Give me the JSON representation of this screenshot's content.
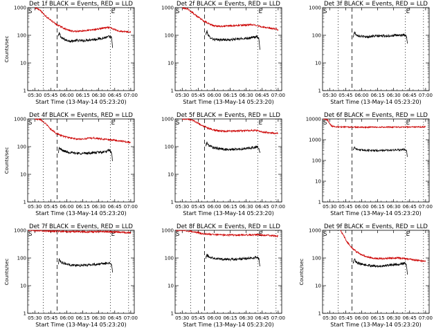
{
  "chart_data": [
    {
      "type": "line",
      "title": "Det 1f BLACK = Events, RED = LLD",
      "xlabel": "Start Time (13-May-14 05:23:20)",
      "ylabel": "Counts/sec",
      "y_scale": "log",
      "ylim": [
        1,
        1000
      ],
      "yticks": [
        "1",
        "10",
        "100",
        "1000"
      ],
      "xticks": [
        "05:30",
        "05:45",
        "06:00",
        "06:15",
        "06:30",
        "06:45",
        "07:00"
      ],
      "markers": {
        "start": "S",
        "end": "E"
      },
      "colors": {
        "events": "#000000",
        "lld": "#cc0000"
      },
      "series": [
        {
          "name": "BLACK = Events",
          "x": [
            "05:52",
            "05:53",
            "05:55",
            "06:00",
            "06:05",
            "06:10",
            "06:15",
            "06:20",
            "06:25",
            "06:30",
            "06:35",
            "06:38",
            "06:40",
            "06:42",
            "06:43"
          ],
          "values": [
            90,
            120,
            80,
            65,
            62,
            65,
            63,
            68,
            70,
            75,
            80,
            85,
            90,
            80,
            35
          ]
        },
        {
          "name": "RED = LLD",
          "x": [
            "05:30",
            "05:35",
            "05:40",
            "05:45",
            "05:50",
            "05:55",
            "06:00",
            "06:05",
            "06:10",
            "06:15",
            "06:20",
            "06:25",
            "06:30",
            "06:35",
            "06:40",
            "06:45",
            "06:50",
            "06:55",
            "07:00"
          ],
          "values": [
            1000,
            800,
            500,
            350,
            250,
            200,
            160,
            140,
            140,
            145,
            150,
            160,
            170,
            185,
            190,
            160,
            140,
            135,
            130
          ]
        }
      ]
    },
    {
      "type": "line",
      "title": "Det 2f BLACK = Events, RED = LLD",
      "xlabel": "Start Time (13-May-14 05:23:20)",
      "ylabel": "",
      "y_scale": "log",
      "ylim": [
        1,
        1000
      ],
      "yticks": [
        "1",
        "10",
        "100",
        "1000"
      ],
      "xticks": [
        "05:30",
        "05:45",
        "06:00",
        "06:15",
        "06:30",
        "06:45",
        "07:00"
      ],
      "markers": {
        "start": "S",
        "end": "E"
      },
      "colors": {
        "events": "#000000",
        "lld": "#cc0000"
      },
      "series": [
        {
          "name": "BLACK = Events",
          "x": [
            "05:52",
            "05:53",
            "05:55",
            "06:00",
            "06:05",
            "06:10",
            "06:15",
            "06:20",
            "06:25",
            "06:30",
            "06:35",
            "06:38",
            "06:40",
            "06:42",
            "06:43"
          ],
          "values": [
            100,
            140,
            90,
            70,
            68,
            70,
            68,
            72,
            75,
            78,
            82,
            86,
            88,
            75,
            30
          ]
        },
        {
          "name": "RED = LLD",
          "x": [
            "05:30",
            "05:35",
            "05:40",
            "05:45",
            "05:50",
            "05:55",
            "06:00",
            "06:05",
            "06:10",
            "06:15",
            "06:20",
            "06:25",
            "06:30",
            "06:35",
            "06:40",
            "06:45",
            "06:50",
            "06:55",
            "07:00"
          ],
          "values": [
            1000,
            900,
            650,
            450,
            330,
            260,
            220,
            210,
            215,
            220,
            225,
            230,
            235,
            240,
            230,
            200,
            185,
            175,
            160
          ]
        }
      ]
    },
    {
      "type": "line",
      "title": "Det 3f BLACK = Events, RED = LLD",
      "xlabel": "Start Time (13-May-14 05:23:20)",
      "ylabel": "",
      "y_scale": "log",
      "ylim": [
        1,
        1000
      ],
      "yticks": [
        "1",
        "10",
        "100",
        "1000"
      ],
      "xticks": [
        "05:30",
        "05:45",
        "06:00",
        "06:15",
        "06:30",
        "06:45",
        "07:00"
      ],
      "markers": {
        "start": "S",
        "end": "E"
      },
      "colors": {
        "events": "#000000",
        "lld": "#cc0000"
      },
      "series": [
        {
          "name": "BLACK = Events",
          "x": [
            "05:52",
            "05:53",
            "05:55",
            "06:00",
            "06:05",
            "06:10",
            "06:15",
            "06:20",
            "06:25",
            "06:30",
            "06:35",
            "06:38",
            "06:40",
            "06:42",
            "06:43"
          ],
          "values": [
            80,
            130,
            105,
            90,
            88,
            92,
            94,
            95,
            96,
            98,
            100,
            102,
            100,
            90,
            50
          ]
        },
        {
          "name": "RED = LLD",
          "x": [],
          "values": []
        }
      ]
    },
    {
      "type": "line",
      "title": "Det 4f BLACK = Events, RED = LLD",
      "xlabel": "Start Time (13-May-14 05:23:20)",
      "ylabel": "Counts/sec",
      "y_scale": "log",
      "ylim": [
        1,
        1000
      ],
      "yticks": [
        "1",
        "10",
        "100",
        "1000"
      ],
      "xticks": [
        "05:30",
        "05:45",
        "06:00",
        "06:15",
        "06:30",
        "06:45",
        "07:00"
      ],
      "markers": {
        "start": "S",
        "end": "E"
      },
      "colors": {
        "events": "#000000",
        "lld": "#cc0000"
      },
      "series": [
        {
          "name": "BLACK = Events",
          "x": [
            "05:52",
            "05:53",
            "05:55",
            "06:00",
            "06:05",
            "06:10",
            "06:15",
            "06:20",
            "06:25",
            "06:30",
            "06:35",
            "06:38",
            "06:40",
            "06:42",
            "06:43"
          ],
          "values": [
            60,
            90,
            75,
            65,
            60,
            58,
            57,
            58,
            60,
            62,
            64,
            68,
            75,
            60,
            30
          ]
        },
        {
          "name": "RED = LLD",
          "x": [
            "05:30",
            "05:35",
            "05:40",
            "05:45",
            "05:50",
            "05:55",
            "06:00",
            "06:05",
            "06:10",
            "06:15",
            "06:20",
            "06:25",
            "06:30",
            "06:35",
            "06:40",
            "06:45",
            "06:50",
            "06:55",
            "07:00"
          ],
          "values": [
            1000,
            950,
            700,
            420,
            300,
            250,
            220,
            200,
            185,
            190,
            200,
            205,
            195,
            185,
            180,
            170,
            160,
            150,
            145
          ]
        }
      ]
    },
    {
      "type": "line",
      "title": "Det 5f BLACK = Events, RED = LLD",
      "xlabel": "Start Time (13-May-14 05:23:20)",
      "ylabel": "",
      "y_scale": "log",
      "ylim": [
        1,
        1000
      ],
      "yticks": [
        "1",
        "10",
        "100",
        "1000"
      ],
      "xticks": [
        "05:30",
        "05:45",
        "06:00",
        "06:15",
        "06:30",
        "06:45",
        "07:00"
      ],
      "markers": {
        "start": "S",
        "end": "E"
      },
      "colors": {
        "events": "#000000",
        "lld": "#cc0000"
      },
      "series": [
        {
          "name": "BLACK = Events",
          "x": [
            "05:52",
            "05:53",
            "05:55",
            "06:00",
            "06:05",
            "06:10",
            "06:15",
            "06:20",
            "06:25",
            "06:30",
            "06:35",
            "06:38",
            "06:40",
            "06:42",
            "06:43"
          ],
          "values": [
            100,
            140,
            110,
            90,
            85,
            80,
            78,
            80,
            82,
            85,
            90,
            95,
            100,
            85,
            60
          ]
        },
        {
          "name": "RED = LLD",
          "x": [
            "05:30",
            "05:35",
            "05:40",
            "05:45",
            "05:50",
            "05:55",
            "06:00",
            "06:05",
            "06:10",
            "06:15",
            "06:20",
            "06:25",
            "06:30",
            "06:35",
            "06:40",
            "06:45",
            "06:50",
            "06:55",
            "07:00"
          ],
          "values": [
            1000,
            1000,
            900,
            700,
            550,
            450,
            400,
            370,
            360,
            365,
            370,
            375,
            380,
            385,
            380,
            340,
            320,
            310,
            300
          ]
        }
      ]
    },
    {
      "type": "line",
      "title": "Det 6f BLACK = Events, RED = LLD",
      "xlabel": "Start Time (13-May-14 05:23:20)",
      "ylabel": "",
      "y_scale": "log",
      "ylim": [
        1,
        10000
      ],
      "yticks": [
        "1",
        "10",
        "100",
        "1000",
        "10000"
      ],
      "xticks": [
        "05:30",
        "05:45",
        "06:00",
        "06:15",
        "06:30",
        "06:45",
        "07:00"
      ],
      "markers": {
        "start": "S",
        "end": "E"
      },
      "colors": {
        "events": "#000000",
        "lld": "#cc0000"
      },
      "series": [
        {
          "name": "BLACK = Events",
          "x": [
            "05:52",
            "05:53",
            "05:55",
            "06:00",
            "06:05",
            "06:10",
            "06:15",
            "06:20",
            "06:25",
            "06:30",
            "06:35",
            "06:38",
            "06:40",
            "06:42",
            "06:43"
          ],
          "values": [
            300,
            450,
            350,
            320,
            310,
            305,
            300,
            305,
            310,
            315,
            320,
            330,
            340,
            300,
            150
          ]
        },
        {
          "name": "RED = LLD",
          "x": [
            "05:24",
            "05:28",
            "05:30",
            "05:32",
            "05:35",
            "05:40",
            "05:45",
            "05:50",
            "06:00",
            "06:15",
            "06:30",
            "06:45",
            "07:00"
          ],
          "values": [
            10000,
            9000,
            6000,
            4500,
            4200,
            4100,
            4100,
            4050,
            4000,
            4000,
            4050,
            4100,
            4150
          ]
        }
      ]
    },
    {
      "type": "line",
      "title": "Det 7f BLACK = Events, RED = LLD",
      "xlabel": "Start Time (13-May-14 05:23:20)",
      "ylabel": "Counts/sec",
      "y_scale": "log",
      "ylim": [
        1,
        1000
      ],
      "yticks": [
        "1",
        "10",
        "100",
        "1000"
      ],
      "xticks": [
        "05:30",
        "05:45",
        "06:00",
        "06:15",
        "06:30",
        "06:45",
        "07:00"
      ],
      "markers": {
        "start": "S",
        "end": "E"
      },
      "colors": {
        "events": "#000000",
        "lld": "#cc0000"
      },
      "series": [
        {
          "name": "BLACK = Events",
          "x": [
            "05:52",
            "05:53",
            "05:55",
            "06:00",
            "06:05",
            "06:10",
            "06:15",
            "06:20",
            "06:25",
            "06:30",
            "06:35",
            "06:38",
            "06:40",
            "06:42",
            "06:43"
          ],
          "values": [
            60,
            90,
            70,
            60,
            55,
            55,
            54,
            56,
            58,
            60,
            62,
            65,
            70,
            55,
            30
          ]
        },
        {
          "name": "RED = LLD",
          "x": [
            "05:24",
            "05:30",
            "05:40",
            "05:50",
            "06:00",
            "06:10",
            "06:20",
            "06:30",
            "06:40",
            "06:50",
            "07:00"
          ],
          "values": [
            1000,
            1000,
            950,
            920,
            900,
            890,
            880,
            900,
            880,
            860,
            820
          ]
        }
      ]
    },
    {
      "type": "line",
      "title": "Det 8f BLACK = Events, RED = LLD",
      "xlabel": "Start Time (13-May-14 05:23:20)",
      "ylabel": "",
      "y_scale": "log",
      "ylim": [
        1,
        1000
      ],
      "yticks": [
        "1",
        "10",
        "100",
        "1000"
      ],
      "xticks": [
        "05:30",
        "05:45",
        "06:00",
        "06:15",
        "06:30",
        "06:45",
        "07:00"
      ],
      "markers": {
        "start": "S",
        "end": "E"
      },
      "colors": {
        "events": "#000000",
        "lld": "#cc0000"
      },
      "series": [
        {
          "name": "BLACK = Events",
          "x": [
            "05:52",
            "05:53",
            "05:55",
            "06:00",
            "06:05",
            "06:10",
            "06:15",
            "06:20",
            "06:25",
            "06:30",
            "06:35",
            "06:38",
            "06:40",
            "06:42",
            "06:43"
          ],
          "values": [
            90,
            130,
            110,
            100,
            95,
            90,
            88,
            90,
            92,
            95,
            100,
            105,
            110,
            90,
            50
          ]
        },
        {
          "name": "RED = LLD",
          "x": [
            "05:24",
            "05:30",
            "05:40",
            "05:50",
            "06:00",
            "06:10",
            "06:20",
            "06:30",
            "06:40",
            "06:50",
            "07:00"
          ],
          "values": [
            1000,
            1000,
            900,
            750,
            700,
            680,
            670,
            680,
            690,
            660,
            620
          ]
        }
      ]
    },
    {
      "type": "line",
      "title": "Det 9f BLACK = Events, RED = LLD",
      "xlabel": "Start Time (13-May-14 05:23:20)",
      "ylabel": "Counts/sec",
      "y_scale": "log",
      "ylim": [
        1,
        1000
      ],
      "yticks": [
        "1",
        "10",
        "100",
        "1000"
      ],
      "xticks": [
        "05:30",
        "05:45",
        "06:00",
        "06:15",
        "06:30",
        "06:45",
        "07:00"
      ],
      "markers": {
        "start": "S",
        "end": "E"
      },
      "colors": {
        "events": "#000000",
        "lld": "#cc0000"
      },
      "series": [
        {
          "name": "BLACK = Events",
          "x": [
            "05:52",
            "05:53",
            "05:55",
            "06:00",
            "06:05",
            "06:10",
            "06:15",
            "06:20",
            "06:25",
            "06:30",
            "06:35",
            "06:38",
            "06:40",
            "06:42",
            "06:43"
          ],
          "values": [
            60,
            90,
            70,
            60,
            55,
            52,
            50,
            52,
            55,
            58,
            60,
            63,
            65,
            55,
            25
          ]
        },
        {
          "name": "RED = LLD",
          "x": [
            "05:40",
            "05:43",
            "05:46",
            "05:50",
            "05:55",
            "06:00",
            "06:05",
            "06:10",
            "06:15",
            "06:20",
            "06:25",
            "06:30",
            "06:35",
            "06:40",
            "06:45",
            "06:50",
            "06:55",
            "07:00"
          ],
          "values": [
            1000,
            650,
            400,
            250,
            170,
            130,
            110,
            100,
            95,
            95,
            98,
            100,
            100,
            95,
            90,
            85,
            80,
            75
          ]
        }
      ]
    }
  ]
}
